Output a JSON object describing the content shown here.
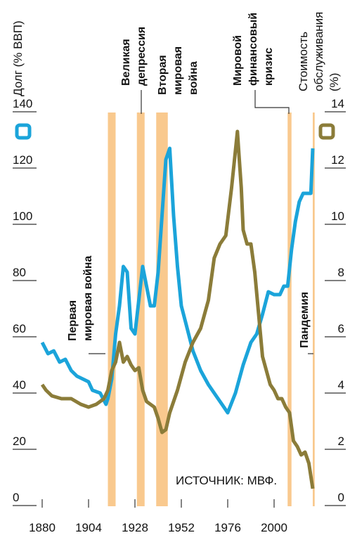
{
  "chart_data": {
    "type": "line",
    "y_label_lines": [
      "Долг (% ВВП)"
    ],
    "y2_label_lines": [
      "Стоимость",
      "обслуживания",
      "(%)"
    ],
    "source": "ИСТОЧНИК: МВФ.",
    "xlim": [
      1880,
      2022
    ],
    "xticks": [
      1880,
      1904,
      1928,
      1952,
      1976,
      2000
    ],
    "ylim": [
      0,
      140
    ],
    "yticks": [
      0,
      20,
      40,
      60,
      80,
      100,
      120,
      140
    ],
    "y2lim": [
      0,
      14
    ],
    "y2ticks": [
      0,
      2,
      4,
      6,
      8,
      10,
      12,
      14
    ],
    "band_color": "#f9c98e",
    "shaded_periods": [
      {
        "label_lines": [
          "Первая",
          "мировая война"
        ],
        "start": 1914,
        "end": 1918
      },
      {
        "label_lines": [
          "Великая",
          "депрессия"
        ],
        "start": 1929,
        "end": 1933
      },
      {
        "label_lines": [
          "Вторая",
          "мировая",
          "война"
        ],
        "start": 1939,
        "end": 1945
      },
      {
        "label_lines": [
          "Мировой",
          "финансовый",
          "кризис"
        ],
        "start": 2007,
        "end": 2009
      },
      {
        "label_lines": [
          "Пандемия"
        ],
        "start": 2020,
        "end": 2021
      }
    ],
    "series": [
      {
        "name": "Долг",
        "color": "#1ba4da",
        "x": [
          1880,
          1883,
          1886,
          1889,
          1892,
          1895,
          1898,
          1901,
          1904,
          1906,
          1910,
          1913,
          1914,
          1916,
          1918,
          1920,
          1922,
          1924,
          1926,
          1928,
          1930,
          1932,
          1934,
          1936,
          1938,
          1940,
          1944,
          1946,
          1948,
          1950,
          1952,
          1955,
          1958,
          1962,
          1966,
          1970,
          1973,
          1976,
          1980,
          1984,
          1988,
          1991,
          1994,
          1997,
          2000,
          2003,
          2005,
          2007,
          2009,
          2011,
          2013,
          2015,
          2017,
          2019,
          2020
        ],
        "values": [
          55,
          51,
          52,
          48,
          49,
          45,
          43,
          42,
          41,
          38,
          37,
          33,
          35,
          42,
          58,
          68,
          82,
          80,
          60,
          58,
          70,
          82,
          75,
          68,
          68,
          80,
          120,
          124,
          100,
          82,
          68,
          60,
          52,
          45,
          40,
          36,
          33,
          30,
          37,
          47,
          55,
          58,
          65,
          73,
          72,
          72,
          75,
          75,
          88,
          98,
          105,
          108,
          108,
          108,
          124
        ]
      },
      {
        "name": "Стоимость обслуживания",
        "color": "#8b7c39",
        "axis": "y2",
        "x": [
          1880,
          1882,
          1885,
          1890,
          1895,
          1900,
          1904,
          1908,
          1912,
          1914,
          1916,
          1918,
          1920,
          1922,
          1924,
          1926,
          1928,
          1930,
          1932,
          1934,
          1936,
          1938,
          1940,
          1942,
          1944,
          1946,
          1948,
          1950,
          1954,
          1958,
          1962,
          1966,
          1969,
          1972,
          1975,
          1978,
          1981,
          1982,
          1983,
          1984,
          1986,
          1988,
          1990,
          1992,
          1994,
          1996,
          1998,
          2000,
          2002,
          2004,
          2006,
          2008,
          2010,
          2012,
          2014,
          2016,
          2018,
          2020
        ],
        "values": [
          4.0,
          3.8,
          3.6,
          3.5,
          3.5,
          3.3,
          3.2,
          3.3,
          3.5,
          3.8,
          4.5,
          4.8,
          5.5,
          4.8,
          5.0,
          4.7,
          4.5,
          4.6,
          3.8,
          3.4,
          3.3,
          3.2,
          2.8,
          2.3,
          2.4,
          3.0,
          3.4,
          3.8,
          4.8,
          5.5,
          6.0,
          7.0,
          8.5,
          9.0,
          9.3,
          11.0,
          13.0,
          12.0,
          11.0,
          9.5,
          9.0,
          9.0,
          8.0,
          6.5,
          5.0,
          4.5,
          4.0,
          3.8,
          3.5,
          3.5,
          3.2,
          3.0,
          2.0,
          1.8,
          1.5,
          1.6,
          1.2,
          0.3
        ]
      }
    ]
  }
}
